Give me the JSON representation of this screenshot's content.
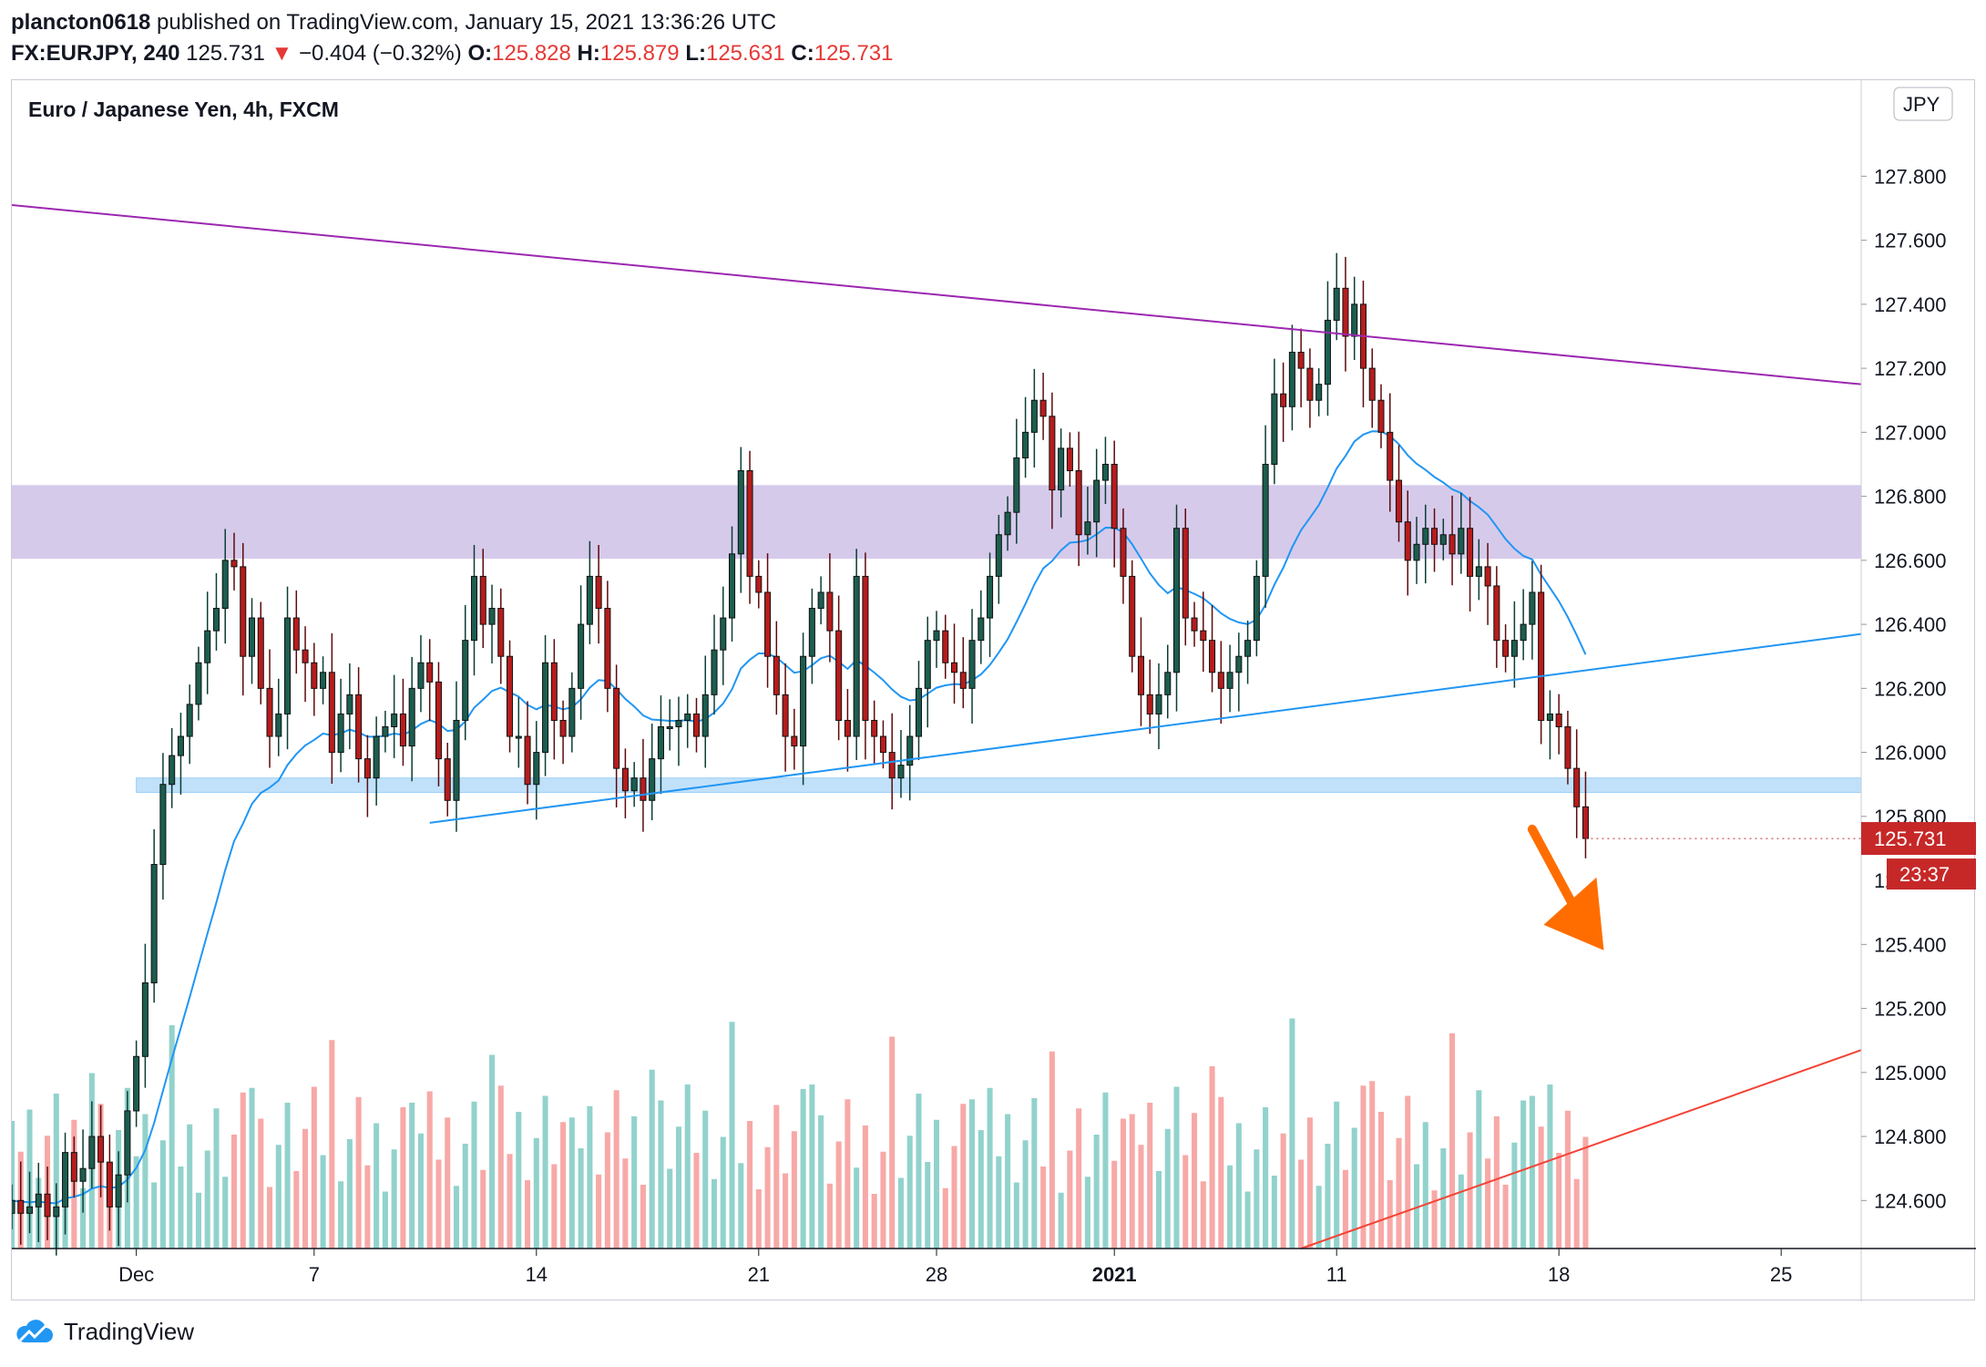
{
  "header": {
    "user": "plancton0618",
    "published": " published on TradingView.com, January 15, 2021 13:36:26 UTC",
    "symbol": "FX:EURJPY, 240",
    "last": "125.731",
    "arrow": "▼",
    "change": "−0.404 (−0.32%)",
    "o_label": "O:",
    "o_value": "125.828",
    "h_label": "H:",
    "h_value": "125.879",
    "l_label": "L:",
    "l_value": "125.631",
    "c_label": "C:",
    "c_value": "125.731"
  },
  "footer": {
    "brand": "TradingView"
  },
  "colors": {
    "up": "#26a69a",
    "down": "#ef5350",
    "ema": "#2196f3",
    "resistance_zone": "#d1c4e9",
    "support_zone": "#bbdefb",
    "downtrend_line": "#9c27b0",
    "uptrend_line": "#2196f3",
    "lower_line": "#f44336",
    "arrow": "#ff6d00",
    "price_badge": "#c62828"
  },
  "chart_data": {
    "type": "candlestick",
    "title": "Euro / Japanese Yen, 4h, FXCM",
    "currency_label": "JPY",
    "ylim": [
      124.45,
      128.1
    ],
    "y_ticks": [
      "127.800",
      "127.600",
      "127.400",
      "127.200",
      "127.000",
      "126.800",
      "126.600",
      "126.400",
      "126.200",
      "126.000",
      "125.800",
      "125.400",
      "125.200",
      "125.000",
      "124.800",
      "124.600"
    ],
    "x_ticks": [
      {
        "label": "Dec",
        "index": 14,
        "bold": false
      },
      {
        "label": "7",
        "index": 34,
        "bold": false
      },
      {
        "label": "14",
        "index": 59,
        "bold": false
      },
      {
        "label": "21",
        "index": 84,
        "bold": false
      },
      {
        "label": "28",
        "index": 104,
        "bold": false
      },
      {
        "label": "2021",
        "index": 124,
        "bold": true
      },
      {
        "label": "11",
        "index": 149,
        "bold": false
      },
      {
        "label": "18",
        "index": 174,
        "bold": false
      },
      {
        "label": "25",
        "index": 199,
        "bold": false
      }
    ],
    "x_range": [
      0,
      208
    ],
    "closes": [
      124.6,
      124.56,
      124.58,
      124.62,
      124.55,
      124.58,
      124.75,
      124.66,
      124.7,
      124.8,
      124.72,
      124.58,
      124.68,
      124.88,
      125.05,
      125.28,
      125.65,
      125.9,
      125.99,
      126.05,
      126.15,
      126.28,
      126.38,
      126.45,
      126.6,
      126.58,
      126.3,
      126.42,
      126.2,
      126.05,
      126.12,
      126.42,
      126.32,
      126.28,
      126.2,
      126.25,
      126.0,
      126.12,
      126.18,
      125.98,
      125.92,
      126.05,
      126.08,
      126.12,
      126.02,
      126.2,
      126.28,
      126.22,
      125.98,
      125.85,
      126.1,
      126.35,
      126.55,
      126.4,
      126.45,
      126.3,
      126.05,
      126.05,
      125.9,
      126.0,
      126.28,
      126.1,
      126.05,
      126.2,
      126.4,
      126.55,
      126.45,
      126.2,
      125.95,
      125.88,
      125.92,
      125.85,
      125.98,
      126.08,
      126.08,
      126.1,
      126.12,
      126.05,
      126.18,
      126.32,
      126.42,
      126.62,
      126.88,
      126.55,
      126.5,
      126.3,
      126.18,
      126.05,
      126.02,
      126.3,
      126.45,
      126.5,
      126.38,
      126.1,
      126.05,
      126.55,
      126.1,
      126.05,
      126.0,
      125.92,
      125.96,
      126.05,
      126.2,
      126.35,
      126.38,
      126.28,
      126.25,
      126.2,
      126.35,
      126.42,
      126.55,
      126.68,
      126.75,
      126.92,
      127.0,
      127.1,
      127.05,
      126.82,
      126.95,
      126.88,
      126.68,
      126.72,
      126.85,
      126.9,
      126.7,
      126.55,
      126.3,
      126.18,
      126.12,
      126.18,
      126.25,
      126.7,
      126.42,
      126.38,
      126.35,
      126.25,
      126.2,
      126.25,
      126.3,
      126.35,
      126.55,
      126.9,
      127.12,
      127.08,
      127.25,
      127.2,
      127.1,
      127.15,
      127.35,
      127.45,
      127.3,
      127.4,
      127.2,
      127.1,
      127.0,
      126.85,
      126.72,
      126.6,
      126.65,
      126.7,
      126.65,
      126.68,
      126.62,
      126.7,
      126.55,
      126.58,
      126.52,
      126.35,
      126.3,
      126.35,
      126.4,
      126.5,
      126.1,
      126.12,
      126.08,
      125.95,
      125.83,
      125.731
    ],
    "opens_note": "",
    "ema_window": 20,
    "volume_max": 1.0,
    "annotations": {
      "resistance_zone": [
        126.605,
        126.835
      ],
      "support_zone": [
        125.875,
        125.92
      ]
    },
    "last_price": "125.731",
    "countdown": "23:37",
    "hidden_tick_partial": "125.600"
  }
}
